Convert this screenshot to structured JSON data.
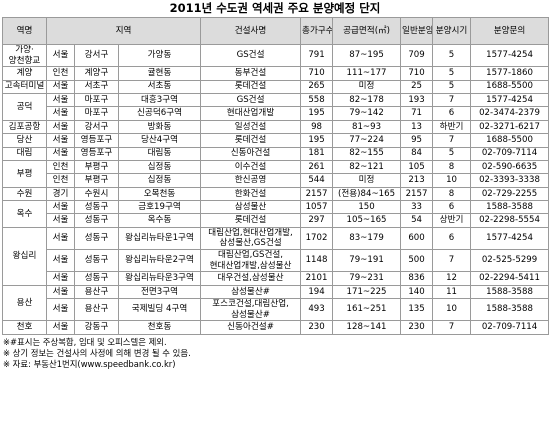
{
  "title": "2011년 수도권 역세권 주요 분양예정 단지",
  "header": {
    "station": "역명",
    "region": "지역",
    "builder": "건설사명",
    "households": "총가구수",
    "area": "공급면적(㎡)",
    "general": "일반분양",
    "timing": "분양시기",
    "contact": "분양문의"
  },
  "groups": [
    {
      "station": "가양·양천향교",
      "rows": [
        [
          "서울",
          "강서구",
          "가양동",
          "GS건설",
          "791",
          "87~195",
          "709",
          "5",
          "1577-4254"
        ]
      ]
    },
    {
      "station": "계양",
      "rows": [
        [
          "인천",
          "계양구",
          "귤현동",
          "동부건설",
          "710",
          "111~177",
          "710",
          "5",
          "1577-1860"
        ]
      ]
    },
    {
      "station": "고속터미널",
      "rows": [
        [
          "서울",
          "서초구",
          "서초동",
          "롯데건설",
          "265",
          "미정",
          "25",
          "5",
          "1688-5500"
        ]
      ]
    },
    {
      "station": "공덕",
      "rows": [
        [
          "서울",
          "마포구",
          "대흥3구역",
          "GS건설",
          "558",
          "82~178",
          "193",
          "7",
          "1577-4254"
        ],
        [
          "서울",
          "마포구",
          "신공덕6구역",
          "현대산업개발",
          "195",
          "79~142",
          "71",
          "6",
          "02-3474-2379"
        ]
      ]
    },
    {
      "station": "김포공항",
      "rows": [
        [
          "서울",
          "강서구",
          "방화동",
          "일성건설",
          "98",
          "81~93",
          "13",
          "하반기",
          "02-3271-6217"
        ]
      ]
    },
    {
      "station": "당산",
      "rows": [
        [
          "서울",
          "영등포구",
          "당산4구역",
          "롯데건설",
          "195",
          "77~224",
          "95",
          "7",
          "1688-5500"
        ]
      ]
    },
    {
      "station": "대림",
      "rows": [
        [
          "서울",
          "영등포구",
          "대림동",
          "신동아건설",
          "181",
          "82~155",
          "84",
          "5",
          "02-709-7114"
        ]
      ]
    },
    {
      "station": "부평",
      "rows": [
        [
          "인천",
          "부평구",
          "십정동",
          "이수건설",
          "261",
          "82~121",
          "105",
          "8",
          "02-590-6635"
        ],
        [
          "인천",
          "부평구",
          "십정동",
          "한신공영",
          "544",
          "미정",
          "213",
          "10",
          "02-3393-3338"
        ]
      ]
    },
    {
      "station": "수원",
      "rows": [
        [
          "경기",
          "수원시",
          "오목천동",
          "한화건설",
          "2157",
          "(전용)84~165",
          "2157",
          "8",
          "02-729-2255"
        ]
      ]
    },
    {
      "station": "옥수",
      "rows": [
        [
          "서울",
          "성동구",
          "금호19구역",
          "삼성물산",
          "1057",
          "150",
          "33",
          "6",
          "1588-3588"
        ],
        [
          "서울",
          "성동구",
          "옥수동",
          "롯데건설",
          "297",
          "105~165",
          "54",
          "상반기",
          "02-2298-5554"
        ]
      ]
    },
    {
      "station": "왕십리",
      "rows": [
        [
          "서울",
          "성동구",
          "왕십리뉴타운1구역",
          "대림산업,현대산업개발,삼성물산,GS건설",
          "1702",
          "83~179",
          "600",
          "6",
          "1577-4254"
        ],
        [
          "서울",
          "성동구",
          "왕십리뉴타운2구역",
          "대림산업,GS건설,현대산업개발,삼성물산",
          "1148",
          "79~191",
          "500",
          "7",
          "02-525-5299"
        ],
        [
          "서울",
          "성동구",
          "왕십리뉴타운3구역",
          "대우건설,삼성물산",
          "2101",
          "79~231",
          "836",
          "12",
          "02-2294-5411"
        ]
      ]
    },
    {
      "station": "용산",
      "rows": [
        [
          "서울",
          "용산구",
          "전면3구역",
          "삼성물산#",
          "194",
          "171~225",
          "140",
          "11",
          "1588-3588"
        ],
        [
          "서울",
          "용산구",
          "국제빌딩 4구역",
          "포스코건설,대림산업,삼성물산#",
          "493",
          "161~251",
          "135",
          "10",
          "1588-3588"
        ]
      ]
    },
    {
      "station": "천호",
      "rows": [
        [
          "서울",
          "강동구",
          "천호동",
          "신동아건설#",
          "230",
          "128~141",
          "230",
          "7",
          "02-709-7114"
        ]
      ]
    }
  ],
  "notes": [
    "※#표시는 주상복합, 임대 및 오피스텔은 제외.",
    "※ 상기 정보는 건설사의 사정에 의해 변경 될 수 있음.",
    "※ 자료: 부동산1번지(www.speedbank.co.kr)"
  ]
}
